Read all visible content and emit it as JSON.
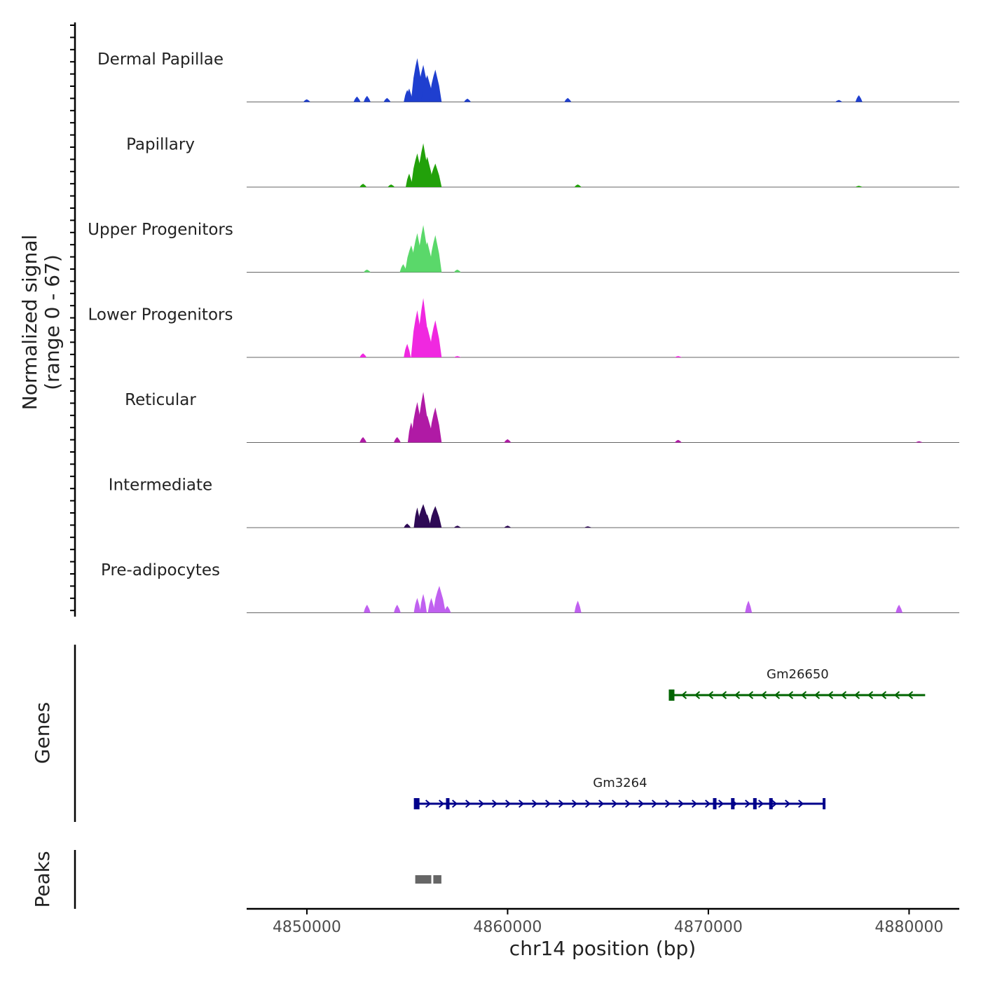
{
  "chart_data": {
    "type": "area",
    "title": "",
    "y_axis_label_line1": "Normalized signal",
    "y_axis_label_line2": "(range 0 - 67)",
    "y_range": [
      0,
      67
    ],
    "xlabel": "chr14 position (bp)",
    "x_ticks": [
      4850000,
      4860000,
      4870000,
      4880000
    ],
    "x_tick_labels": [
      "4850000",
      "4860000",
      "4870000",
      "4880000"
    ],
    "xlim": [
      4847000,
      4882500
    ],
    "tracks": [
      {
        "name": "Dermal Papillae",
        "color": "#1f3fcf",
        "peaks": [
          [
            4855100,
            20
          ],
          [
            4855500,
            65
          ],
          [
            4855800,
            55
          ],
          [
            4856000,
            40
          ],
          [
            4856400,
            48
          ],
          [
            4852500,
            8
          ],
          [
            4853000,
            9
          ],
          [
            4854000,
            6
          ],
          [
            4855000,
            18
          ],
          [
            4850000,
            4
          ],
          [
            4858000,
            5
          ],
          [
            4863000,
            6
          ],
          [
            4876500,
            3
          ],
          [
            4877500,
            10
          ]
        ]
      },
      {
        "name": "Papillary",
        "color": "#22a10a",
        "peaks": [
          [
            4855100,
            20
          ],
          [
            4855500,
            50
          ],
          [
            4855800,
            65
          ],
          [
            4856000,
            45
          ],
          [
            4856400,
            35
          ],
          [
            4852800,
            5
          ],
          [
            4854200,
            4
          ],
          [
            4863500,
            4
          ],
          [
            4877500,
            2
          ]
        ]
      },
      {
        "name": "Upper Progenitors",
        "color": "#5ad86a",
        "peaks": [
          [
            4854800,
            12
          ],
          [
            4855200,
            40
          ],
          [
            4855500,
            58
          ],
          [
            4855800,
            70
          ],
          [
            4856000,
            45
          ],
          [
            4856400,
            55
          ],
          [
            4853000,
            4
          ],
          [
            4857500,
            4
          ]
        ]
      },
      {
        "name": "Lower Progenitors",
        "color": "#f028e0",
        "peaks": [
          [
            4852800,
            6
          ],
          [
            4855000,
            20
          ],
          [
            4855500,
            70
          ],
          [
            4855800,
            88
          ],
          [
            4856000,
            45
          ],
          [
            4856400,
            55
          ],
          [
            4857500,
            2
          ],
          [
            4868500,
            2
          ]
        ]
      },
      {
        "name": "Reticular",
        "color": "#b01aa5",
        "peaks": [
          [
            4852800,
            8
          ],
          [
            4854500,
            8
          ],
          [
            4855200,
            30
          ],
          [
            4855500,
            60
          ],
          [
            4855800,
            75
          ],
          [
            4856000,
            40
          ],
          [
            4856400,
            52
          ],
          [
            4860000,
            5
          ],
          [
            4868500,
            4
          ],
          [
            4880500,
            2
          ]
        ]
      },
      {
        "name": "Intermediate",
        "color": "#2e0a55",
        "peaks": [
          [
            4855000,
            6
          ],
          [
            4855500,
            30
          ],
          [
            4855800,
            35
          ],
          [
            4856000,
            20
          ],
          [
            4856400,
            32
          ],
          [
            4857500,
            3
          ],
          [
            4860000,
            3
          ],
          [
            4864000,
            2
          ]
        ]
      },
      {
        "name": "Pre-adipocytes",
        "color": "#c060f0",
        "peaks": [
          [
            4853000,
            12
          ],
          [
            4854500,
            12
          ],
          [
            4855500,
            22
          ],
          [
            4855800,
            28
          ],
          [
            4856200,
            22
          ],
          [
            4856600,
            40
          ],
          [
            4857000,
            10
          ],
          [
            4863500,
            18
          ],
          [
            4872000,
            18
          ],
          [
            4879500,
            12
          ]
        ]
      }
    ],
    "genes": [
      {
        "name": "Gm26650",
        "strand": "-",
        "start": 4868100,
        "end": 4880800,
        "color": "#006400"
      },
      {
        "name": "Gm3264",
        "strand": "+",
        "start": 4855400,
        "end": 4875800,
        "color": "#00008b"
      }
    ],
    "peaks_track_label": "Peaks",
    "genes_track_label": "Genes",
    "peak_regions": [
      [
        4855400,
        4856200
      ],
      [
        4856300,
        4856700
      ]
    ]
  }
}
